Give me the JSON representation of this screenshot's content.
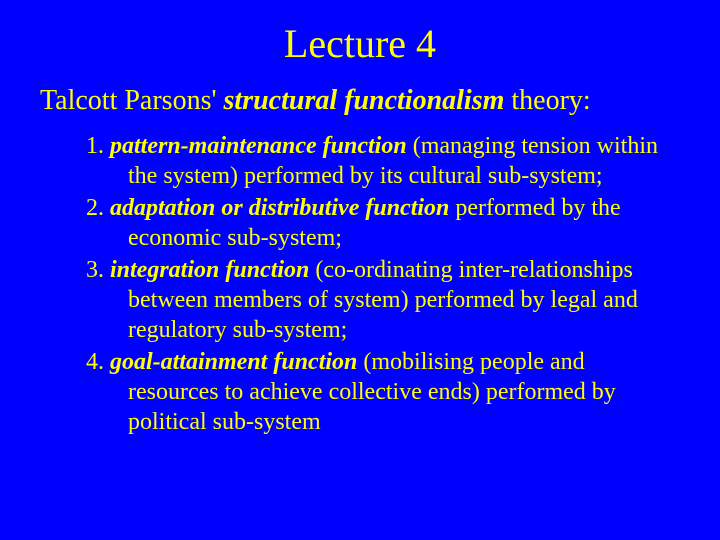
{
  "slide": {
    "background_color": "#0000ff",
    "text_color": "#ffff00",
    "title": "Lecture 4",
    "subtitle_prefix": "Talcott Parsons' ",
    "subtitle_emphasis": "structural functionalism",
    "subtitle_suffix": " theory:",
    "items": [
      {
        "num": "1.",
        "term": "pattern-maintenance function",
        "rest": " (managing tension within the system) performed by its cultural sub-system;"
      },
      {
        "num": "2.",
        "term": "adaptation or distributive function",
        "rest": " performed by the economic sub-system;"
      },
      {
        "num": "3.",
        "term": "integration function",
        "rest": " (co-ordinating inter-relationships between members of system) performed by legal and regulatory sub-system;"
      },
      {
        "num": "4.",
        "term": "goal-attainment function",
        "rest": " (mobilising people and resources to achieve collective ends) performed by political sub-system"
      }
    ]
  }
}
